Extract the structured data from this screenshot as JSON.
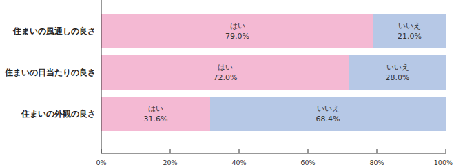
{
  "chart_data": {
    "type": "bar",
    "orientation": "horizontal",
    "stacked": true,
    "data_labels": true,
    "categories": [
      "住まいの風通しの良さ",
      "住まいの日当たりの良さ",
      "住まいの外観の良さ"
    ],
    "series": [
      {
        "name": "はい",
        "color": "#f4b9d3",
        "values": [
          79.0,
          72.0,
          31.6
        ],
        "value_labels": [
          "79.0%",
          "72.0%",
          "31.6%"
        ]
      },
      {
        "name": "いいえ",
        "color": "#b6c8e6",
        "values": [
          21.0,
          28.0,
          68.4
        ],
        "value_labels": [
          "21.0%",
          "28.0%",
          "68.4%"
        ]
      }
    ],
    "xlim": [
      0,
      100
    ],
    "xticks": [
      {
        "value": 0,
        "label": "0%"
      },
      {
        "value": 20,
        "label": "20%"
      },
      {
        "value": 40,
        "label": "40%"
      },
      {
        "value": 60,
        "label": "60%"
      },
      {
        "value": 80,
        "label": "80%"
      },
      {
        "value": 100,
        "label": "100%"
      }
    ]
  }
}
